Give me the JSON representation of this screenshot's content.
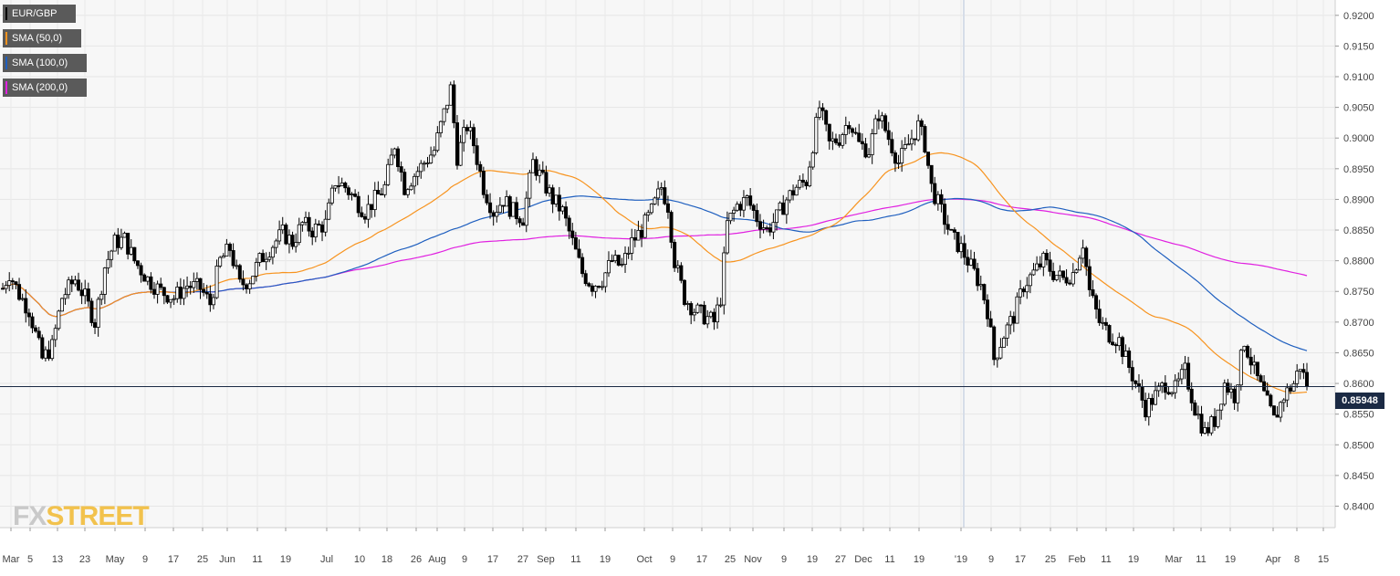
{
  "symbol": "EUR/GBP",
  "legend": [
    {
      "label": "EUR/GBP",
      "color": "#000000"
    },
    {
      "label": "SMA (50,0)",
      "color": "#f7931e"
    },
    {
      "label": "SMA (100,0)",
      "color": "#1f5fbf"
    },
    {
      "label": "SMA (200,0)",
      "color": "#e020e0"
    }
  ],
  "current_price": "0.85948",
  "logo": {
    "part1": "FX",
    "part2": "STREET"
  },
  "chart_data": {
    "type": "candlestick",
    "ylim": [
      0.8365,
      0.9225
    ],
    "y_ticks": [
      "0.9200",
      "0.9150",
      "0.9100",
      "0.9050",
      "0.9000",
      "0.8950",
      "0.8900",
      "0.8850",
      "0.8800",
      "0.8750",
      "0.8700",
      "0.8650",
      "0.8600",
      "0.8550",
      "0.8500",
      "0.8450",
      "0.8400"
    ],
    "x_ticks": [
      "Mar",
      "5",
      "13",
      "23",
      "May",
      "9",
      "17",
      "25",
      "Jun",
      "11",
      "19",
      "Jul",
      "10",
      "18",
      "26",
      "Aug",
      "9",
      "17",
      "27",
      "Sep",
      "11",
      "19",
      "Oct",
      "9",
      "17",
      "25",
      "Nov",
      "9",
      "19",
      "27",
      "Dec",
      "11",
      "19",
      "'19",
      "9",
      "17",
      "25",
      "Feb",
      "11",
      "19",
      "Mar",
      "11",
      "19",
      "Apr",
      "8",
      "15"
    ],
    "last_value": 0.85948,
    "price_path": [
      [
        0,
        0.8755
      ],
      [
        2,
        0.878
      ],
      [
        5,
        0.8745
      ],
      [
        8,
        0.872
      ],
      [
        12,
        0.864
      ],
      [
        15,
        0.866
      ],
      [
        18,
        0.874
      ],
      [
        22,
        0.877
      ],
      [
        25,
        0.874
      ],
      [
        28,
        0.87
      ],
      [
        31,
        0.879
      ],
      [
        34,
        0.883
      ],
      [
        37,
        0.8835
      ],
      [
        40,
        0.88
      ],
      [
        44,
        0.877
      ],
      [
        48,
        0.875
      ],
      [
        52,
        0.874
      ],
      [
        56,
        0.876
      ],
      [
        60,
        0.8755
      ],
      [
        63,
        0.873
      ],
      [
        66,
        0.88
      ],
      [
        69,
        0.882
      ],
      [
        72,
        0.876
      ],
      [
        75,
        0.877
      ],
      [
        78,
        0.88
      ],
      [
        81,
        0.882
      ],
      [
        85,
        0.8845
      ],
      [
        88,
        0.883
      ],
      [
        91,
        0.886
      ],
      [
        94,
        0.885
      ],
      [
        98,
        0.886
      ],
      [
        101,
        0.893
      ],
      [
        104,
        0.892
      ],
      [
        107,
        0.89
      ],
      [
        110,
        0.888
      ],
      [
        113,
        0.89
      ],
      [
        116,
        0.892
      ],
      [
        119,
        0.899
      ],
      [
        122,
        0.892
      ],
      [
        125,
        0.894
      ],
      [
        128,
        0.896
      ],
      [
        131,
        0.898
      ],
      [
        134,
        0.904
      ],
      [
        136,
        0.908
      ],
      [
        138,
        0.897
      ],
      [
        141,
        0.902
      ],
      [
        143,
        0.899
      ],
      [
        146,
        0.892
      ],
      [
        149,
        0.888
      ],
      [
        152,
        0.89
      ],
      [
        155,
        0.888
      ],
      [
        158,
        0.887
      ],
      [
        161,
        0.896
      ],
      [
        164,
        0.893
      ],
      [
        167,
        0.89
      ],
      [
        170,
        0.888
      ],
      [
        173,
        0.883
      ],
      [
        176,
        0.878
      ],
      [
        179,
        0.876
      ],
      [
        182,
        0.877
      ],
      [
        185,
        0.88
      ],
      [
        188,
        0.879
      ],
      [
        191,
        0.883
      ],
      [
        194,
        0.885
      ],
      [
        197,
        0.888
      ],
      [
        200,
        0.892
      ],
      [
        202,
        0.889
      ],
      [
        204,
        0.88
      ],
      [
        207,
        0.874
      ],
      [
        210,
        0.872
      ],
      [
        213,
        0.871
      ],
      [
        216,
        0.87
      ],
      [
        218,
        0.874
      ],
      [
        220,
        0.886
      ],
      [
        223,
        0.889
      ],
      [
        226,
        0.89
      ],
      [
        229,
        0.887
      ],
      [
        232,
        0.885
      ],
      [
        235,
        0.887
      ],
      [
        238,
        0.89
      ],
      [
        241,
        0.892
      ],
      [
        244,
        0.893
      ],
      [
        246,
        0.899
      ],
      [
        248,
        0.905
      ],
      [
        251,
        0.899
      ],
      [
        254,
        0.9
      ],
      [
        257,
        0.903
      ],
      [
        260,
        0.899
      ],
      [
        263,
        0.898
      ],
      [
        266,
        0.904
      ],
      [
        269,
        0.9
      ],
      [
        272,
        0.896
      ],
      [
        275,
        0.899
      ],
      [
        278,
        0.902
      ],
      [
        280,
        0.899
      ],
      [
        282,
        0.892
      ],
      [
        285,
        0.888
      ],
      [
        288,
        0.884
      ],
      [
        291,
        0.882
      ],
      [
        294,
        0.879
      ],
      [
        297,
        0.876
      ],
      [
        299,
        0.872
      ],
      [
        301,
        0.864
      ],
      [
        304,
        0.868
      ],
      [
        307,
        0.871
      ],
      [
        310,
        0.876
      ],
      [
        313,
        0.878
      ],
      [
        316,
        0.88
      ],
      [
        319,
        0.878
      ],
      [
        322,
        0.877
      ],
      [
        325,
        0.878
      ],
      [
        328,
        0.883
      ],
      [
        330,
        0.875
      ],
      [
        333,
        0.87
      ],
      [
        336,
        0.868
      ],
      [
        339,
        0.867
      ],
      [
        341,
        0.864
      ],
      [
        344,
        0.86
      ],
      [
        347,
        0.856
      ],
      [
        350,
        0.858
      ],
      [
        353,
        0.86
      ],
      [
        356,
        0.859
      ],
      [
        359,
        0.862
      ],
      [
        362,
        0.856
      ],
      [
        365,
        0.852
      ],
      [
        368,
        0.854
      ],
      [
        371,
        0.86
      ],
      [
        374,
        0.858
      ],
      [
        377,
        0.867
      ],
      [
        380,
        0.862
      ],
      [
        383,
        0.858
      ],
      [
        386,
        0.854
      ],
      [
        389,
        0.858
      ],
      [
        392,
        0.86
      ],
      [
        394,
        0.863
      ],
      [
        396,
        0.85948
      ]
    ]
  }
}
